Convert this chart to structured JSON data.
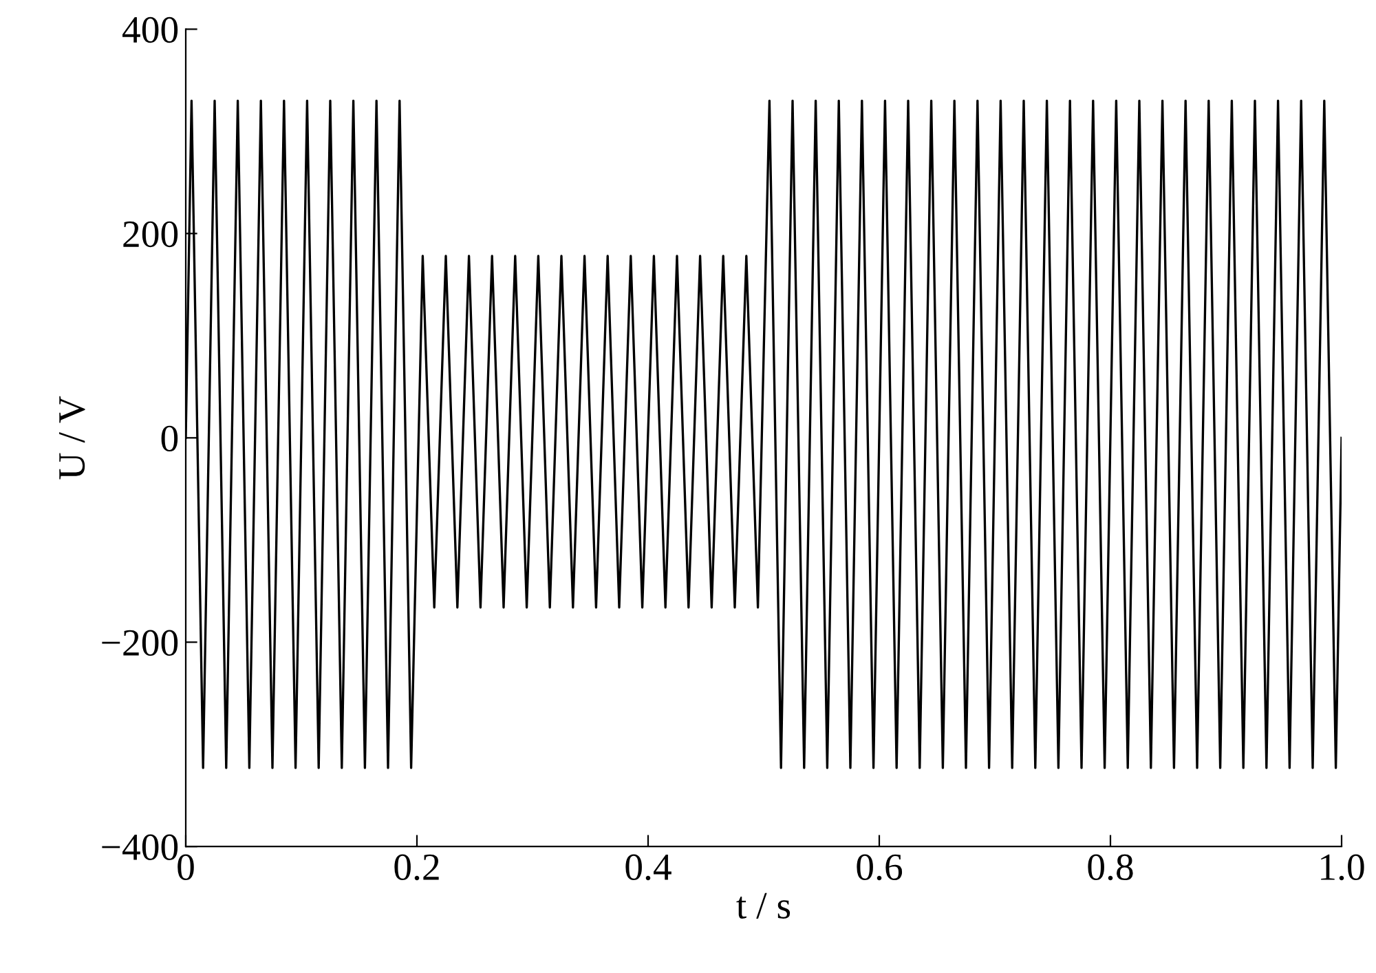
{
  "chart_data": {
    "type": "line",
    "xlabel": "t / s",
    "ylabel": "U / V",
    "xlim": [
      0,
      1.0
    ],
    "xticks": [
      0,
      {
        "value": 0.2,
        "label": "0.2"
      },
      {
        "value": 0.4,
        "label": "0.4"
      },
      {
        "value": 0.6,
        "label": "0.6"
      },
      {
        "value": 0.8,
        "label": "0.8"
      },
      {
        "value": 1.0,
        "label": "1.0"
      }
    ],
    "ylim": [
      -400,
      400
    ],
    "yticks": [
      {
        "value": -400,
        "label": "−400"
      },
      {
        "value": -200,
        "label": "−200"
      },
      0,
      200,
      400
    ],
    "grid": false,
    "legend": false,
    "marker": "none",
    "line_style": "solid",
    "series": [
      {
        "color": "#000000",
        "x": [
          0,
          0.005,
          0.015,
          0.025,
          0.035,
          0.045,
          0.055,
          0.065,
          0.075,
          0.085,
          0.095,
          0.105,
          0.115,
          0.125,
          0.135,
          0.145,
          0.155,
          0.165,
          0.175,
          0.185,
          0.195,
          0.205,
          0.215,
          0.225,
          0.235,
          0.245,
          0.255,
          0.265,
          0.275,
          0.285,
          0.295,
          0.305,
          0.315,
          0.325,
          0.335,
          0.345,
          0.355,
          0.365,
          0.375,
          0.385,
          0.395,
          0.405,
          0.415,
          0.425,
          0.435,
          0.445,
          0.455,
          0.465,
          0.475,
          0.485,
          0.495,
          0.505,
          0.515,
          0.525,
          0.535,
          0.545,
          0.555,
          0.565,
          0.575,
          0.585,
          0.595,
          0.605,
          0.615,
          0.625,
          0.635,
          0.645,
          0.655,
          0.665,
          0.675,
          0.685,
          0.695,
          0.705,
          0.715,
          0.725,
          0.735,
          0.745,
          0.755,
          0.765,
          0.775,
          0.785,
          0.795,
          0.805,
          0.815,
          0.825,
          0.835,
          0.845,
          0.855,
          0.865,
          0.875,
          0.885,
          0.895,
          0.905,
          0.915,
          0.925,
          0.935,
          0.945,
          0.955,
          0.965,
          0.975,
          0.985,
          0.995,
          1.0
        ],
        "values": [
          0,
          330,
          -323,
          330,
          -323,
          330,
          -323,
          330,
          -323,
          330,
          -323,
          330,
          -323,
          330,
          -323,
          330,
          -323,
          330,
          -323,
          330,
          -323,
          178,
          -166,
          178,
          -166,
          178,
          -166,
          178,
          -166,
          178,
          -166,
          178,
          -166,
          178,
          -166,
          178,
          -166,
          178,
          -166,
          178,
          -166,
          178,
          -166,
          178,
          -166,
          178,
          -166,
          178,
          -166,
          178,
          -166,
          330,
          -323,
          330,
          -323,
          330,
          -323,
          330,
          -323,
          330,
          -323,
          330,
          -323,
          330,
          -323,
          330,
          -323,
          330,
          -323,
          330,
          -323,
          330,
          -323,
          330,
          -323,
          330,
          -323,
          330,
          -323,
          330,
          -323,
          330,
          -323,
          330,
          -323,
          330,
          -323,
          330,
          -323,
          330,
          -323,
          330,
          -323,
          330,
          -323,
          330,
          -323,
          330,
          -323,
          330,
          -323,
          0
        ]
      }
    ]
  }
}
